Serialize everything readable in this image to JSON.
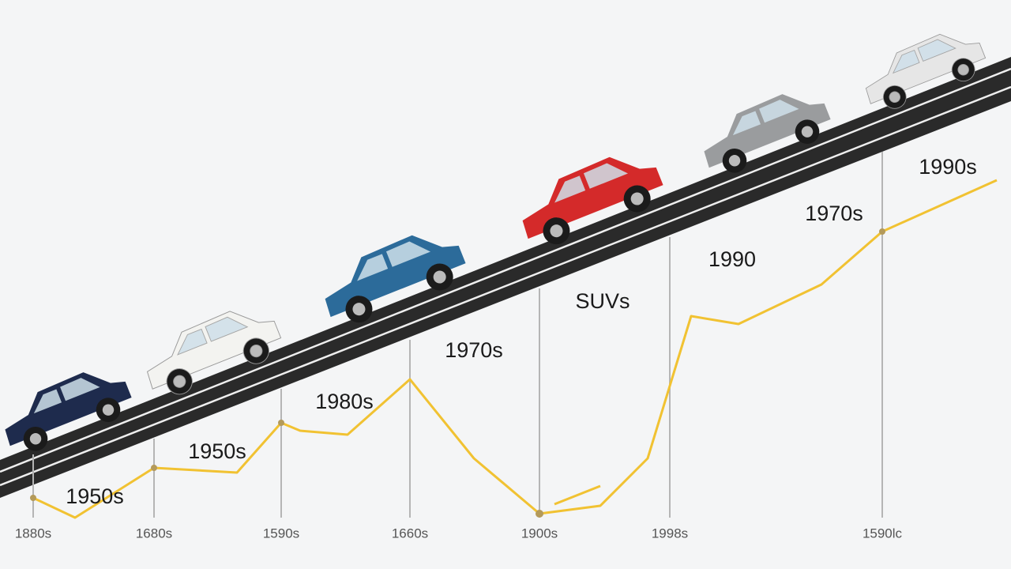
{
  "labels": [
    "1950s",
    "1950s",
    "1980s",
    "1970s",
    "SUVs",
    "1990",
    "1970s",
    "1990s"
  ],
  "axis_labels": [
    "1880s",
    "1680s",
    "1590s",
    "1660s",
    "1900s",
    "1998s",
    "1590lc"
  ]
}
